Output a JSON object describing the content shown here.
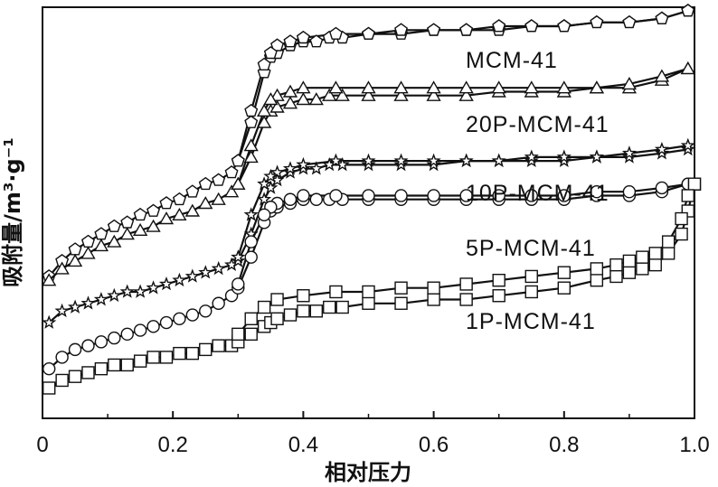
{
  "chart_data": {
    "type": "line",
    "xlabel": "相对压力",
    "ylabel": "吸附量/m³·g⁻¹",
    "xlim": [
      0,
      1.0
    ],
    "ylim": [
      0,
      1
    ],
    "x_tick_labels": [
      "0",
      "0.2",
      "0.4",
      "0.6",
      "0.8",
      "1.0"
    ],
    "x_ticks": [
      0,
      0.2,
      0.4,
      0.6,
      0.8,
      1.0
    ],
    "y_ticks_shown": false,
    "grid": false,
    "series": [
      {
        "name": "MCM-41",
        "marker": "pentagon",
        "adsorption": {
          "x": [
            0.01,
            0.03,
            0.05,
            0.07,
            0.09,
            0.11,
            0.13,
            0.15,
            0.17,
            0.19,
            0.21,
            0.23,
            0.25,
            0.27,
            0.29,
            0.3,
            0.32,
            0.34,
            0.35,
            0.36,
            0.38,
            0.4,
            0.42,
            0.44,
            0.46,
            0.5,
            0.55,
            0.6,
            0.65,
            0.7,
            0.75,
            0.8,
            0.85,
            0.9,
            0.95,
            0.99
          ],
          "y": [
            0.31,
            0.35,
            0.38,
            0.4,
            0.42,
            0.44,
            0.45,
            0.47,
            0.48,
            0.5,
            0.51,
            0.53,
            0.55,
            0.56,
            0.58,
            0.61,
            0.71,
            0.84,
            0.88,
            0.89,
            0.91,
            0.92,
            0.92,
            0.93,
            0.93,
            0.94,
            0.94,
            0.95,
            0.95,
            0.95,
            0.96,
            0.96,
            0.97,
            0.97,
            0.98,
            1.0
          ]
        },
        "desorption": {
          "x": [
            0.99,
            0.95,
            0.9,
            0.85,
            0.8,
            0.75,
            0.7,
            0.65,
            0.6,
            0.55,
            0.5,
            0.45,
            0.4,
            0.38,
            0.36,
            0.35,
            0.34,
            0.32,
            0.3
          ],
          "y": [
            1.0,
            0.98,
            0.97,
            0.97,
            0.96,
            0.96,
            0.96,
            0.95,
            0.95,
            0.95,
            0.94,
            0.94,
            0.93,
            0.92,
            0.91,
            0.89,
            0.86,
            0.74,
            0.61
          ]
        }
      },
      {
        "name": "20P-MCM-41",
        "marker": "triangle",
        "adsorption": {
          "x": [
            0.01,
            0.03,
            0.05,
            0.07,
            0.09,
            0.11,
            0.13,
            0.15,
            0.17,
            0.19,
            0.21,
            0.23,
            0.25,
            0.27,
            0.29,
            0.3,
            0.32,
            0.34,
            0.35,
            0.36,
            0.38,
            0.4,
            0.42,
            0.44,
            0.46,
            0.5,
            0.55,
            0.6,
            0.65,
            0.7,
            0.75,
            0.8,
            0.85,
            0.9,
            0.95,
            0.99
          ],
          "y": [
            0.3,
            0.33,
            0.35,
            0.37,
            0.39,
            0.4,
            0.42,
            0.43,
            0.44,
            0.46,
            0.47,
            0.48,
            0.5,
            0.51,
            0.53,
            0.55,
            0.62,
            0.71,
            0.74,
            0.75,
            0.76,
            0.77,
            0.77,
            0.78,
            0.78,
            0.78,
            0.78,
            0.78,
            0.78,
            0.79,
            0.79,
            0.79,
            0.8,
            0.8,
            0.82,
            0.85
          ]
        },
        "desorption": {
          "x": [
            0.99,
            0.95,
            0.9,
            0.85,
            0.8,
            0.75,
            0.7,
            0.65,
            0.6,
            0.55,
            0.5,
            0.45,
            0.4,
            0.38,
            0.36,
            0.35,
            0.34,
            0.32,
            0.3
          ],
          "y": [
            0.85,
            0.83,
            0.81,
            0.8,
            0.8,
            0.8,
            0.8,
            0.8,
            0.8,
            0.8,
            0.8,
            0.8,
            0.8,
            0.79,
            0.78,
            0.77,
            0.74,
            0.65,
            0.55
          ]
        }
      },
      {
        "name": "10P-MCM-41",
        "marker": "star",
        "adsorption": {
          "x": [
            0.01,
            0.03,
            0.05,
            0.07,
            0.09,
            0.11,
            0.13,
            0.15,
            0.17,
            0.19,
            0.21,
            0.23,
            0.25,
            0.27,
            0.29,
            0.3,
            0.32,
            0.34,
            0.35,
            0.36,
            0.38,
            0.4,
            0.42,
            0.44,
            0.46,
            0.5,
            0.55,
            0.6,
            0.65,
            0.7,
            0.75,
            0.8,
            0.85,
            0.9,
            0.95,
            0.99
          ],
          "y": [
            0.19,
            0.22,
            0.23,
            0.24,
            0.25,
            0.26,
            0.27,
            0.27,
            0.28,
            0.29,
            0.3,
            0.31,
            0.32,
            0.33,
            0.34,
            0.35,
            0.42,
            0.51,
            0.54,
            0.56,
            0.58,
            0.59,
            0.59,
            0.6,
            0.6,
            0.6,
            0.6,
            0.6,
            0.61,
            0.61,
            0.61,
            0.61,
            0.62,
            0.62,
            0.63,
            0.64
          ]
        },
        "desorption": {
          "x": [
            0.99,
            0.95,
            0.9,
            0.85,
            0.8,
            0.75,
            0.7,
            0.65,
            0.6,
            0.55,
            0.5,
            0.45,
            0.4,
            0.38,
            0.36,
            0.35,
            0.34,
            0.32,
            0.3
          ],
          "y": [
            0.65,
            0.64,
            0.63,
            0.62,
            0.62,
            0.62,
            0.61,
            0.61,
            0.61,
            0.61,
            0.61,
            0.61,
            0.6,
            0.59,
            0.58,
            0.57,
            0.55,
            0.47,
            0.36
          ]
        }
      },
      {
        "name": "5P-MCM-41",
        "marker": "circle",
        "adsorption": {
          "x": [
            0.01,
            0.03,
            0.05,
            0.07,
            0.09,
            0.11,
            0.13,
            0.15,
            0.17,
            0.19,
            0.21,
            0.23,
            0.25,
            0.27,
            0.29,
            0.3,
            0.32,
            0.34,
            0.35,
            0.36,
            0.38,
            0.4,
            0.42,
            0.44,
            0.46,
            0.5,
            0.55,
            0.6,
            0.65,
            0.7,
            0.75,
            0.8,
            0.85,
            0.9,
            0.95,
            0.99
          ],
          "y": [
            0.07,
            0.1,
            0.12,
            0.13,
            0.14,
            0.15,
            0.16,
            0.17,
            0.18,
            0.19,
            0.2,
            0.21,
            0.22,
            0.24,
            0.26,
            0.28,
            0.36,
            0.45,
            0.48,
            0.49,
            0.5,
            0.51,
            0.51,
            0.51,
            0.51,
            0.51,
            0.51,
            0.51,
            0.51,
            0.51,
            0.51,
            0.51,
            0.52,
            0.52,
            0.53,
            0.55
          ]
        },
        "desorption": {
          "x": [
            0.99,
            0.95,
            0.9,
            0.85,
            0.8,
            0.75,
            0.7,
            0.65,
            0.6,
            0.55,
            0.5,
            0.45,
            0.4,
            0.38,
            0.36,
            0.35,
            0.34,
            0.32,
            0.3
          ],
          "y": [
            0.55,
            0.54,
            0.53,
            0.53,
            0.52,
            0.52,
            0.52,
            0.52,
            0.52,
            0.52,
            0.52,
            0.52,
            0.52,
            0.51,
            0.5,
            0.49,
            0.47,
            0.4,
            0.29
          ]
        }
      },
      {
        "name": "1P-MCM-41",
        "marker": "square",
        "adsorption": {
          "x": [
            0.01,
            0.03,
            0.05,
            0.07,
            0.09,
            0.11,
            0.13,
            0.15,
            0.17,
            0.19,
            0.21,
            0.23,
            0.25,
            0.27,
            0.29,
            0.3,
            0.32,
            0.34,
            0.35,
            0.36,
            0.38,
            0.4,
            0.42,
            0.44,
            0.46,
            0.5,
            0.55,
            0.6,
            0.65,
            0.7,
            0.75,
            0.8,
            0.85,
            0.88,
            0.9,
            0.92,
            0.94,
            0.96,
            0.98,
            0.99,
            1.0
          ],
          "y": [
            0.02,
            0.04,
            0.05,
            0.06,
            0.07,
            0.08,
            0.08,
            0.09,
            0.1,
            0.1,
            0.11,
            0.11,
            0.12,
            0.13,
            0.13,
            0.14,
            0.16,
            0.18,
            0.19,
            0.2,
            0.21,
            0.22,
            0.22,
            0.23,
            0.23,
            0.24,
            0.24,
            0.25,
            0.25,
            0.26,
            0.27,
            0.28,
            0.3,
            0.31,
            0.32,
            0.33,
            0.34,
            0.37,
            0.42,
            0.48,
            0.55
          ]
        },
        "desorption": {
          "x": [
            1.0,
            0.99,
            0.98,
            0.96,
            0.94,
            0.92,
            0.9,
            0.88,
            0.85,
            0.8,
            0.75,
            0.7,
            0.65,
            0.6,
            0.55,
            0.5,
            0.45,
            0.4,
            0.36,
            0.34,
            0.32,
            0.3
          ],
          "y": [
            0.55,
            0.52,
            0.46,
            0.4,
            0.37,
            0.36,
            0.35,
            0.34,
            0.33,
            0.32,
            0.31,
            0.3,
            0.29,
            0.28,
            0.28,
            0.27,
            0.27,
            0.26,
            0.25,
            0.23,
            0.2,
            0.16
          ]
        }
      }
    ]
  }
}
